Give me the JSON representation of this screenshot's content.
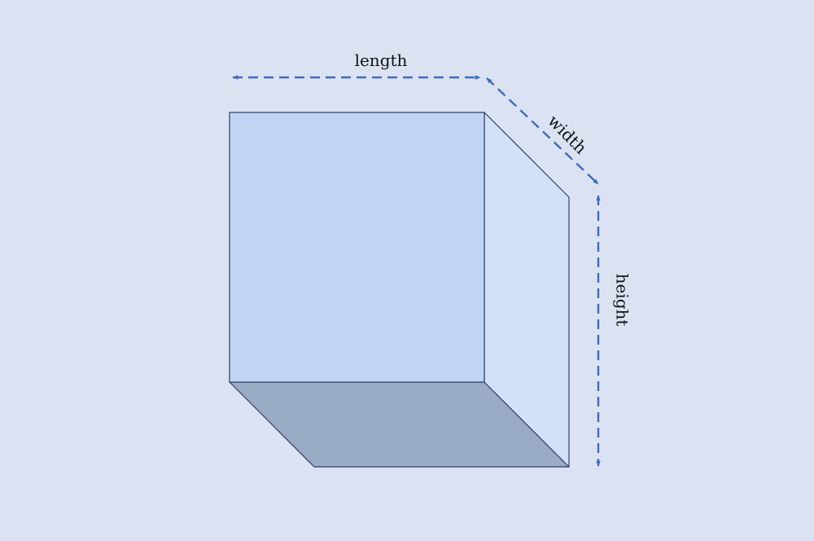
{
  "labels": {
    "length": "length",
    "width": "width",
    "height": "height"
  },
  "colors": {
    "background": "#dbe3f3",
    "front_face": "#c0d4f4",
    "side_face": "#d2e0f8",
    "bottom_face": "#9aabc5",
    "edge": "#2e3f6e",
    "arrow": "#3c6cc0"
  }
}
